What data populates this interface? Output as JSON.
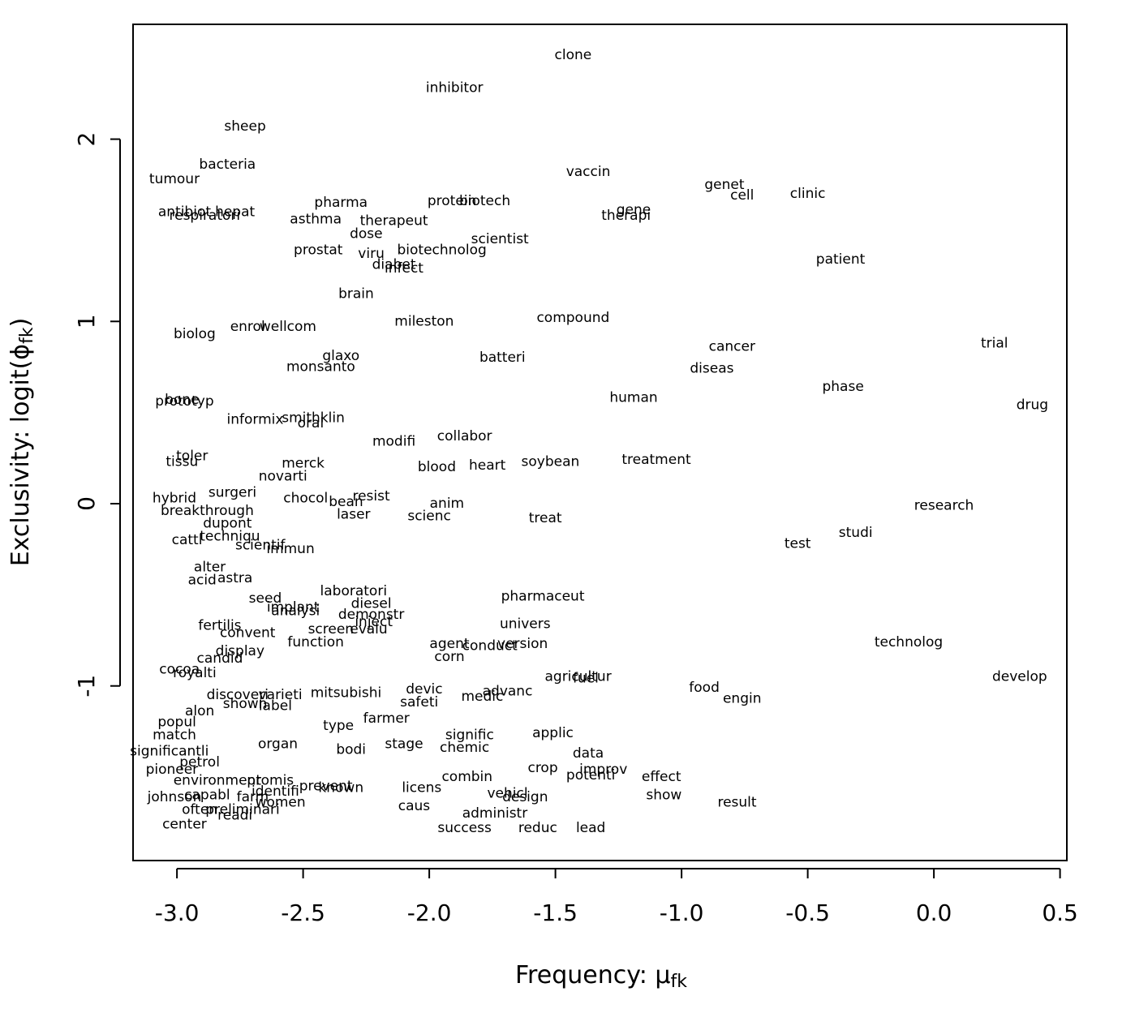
{
  "chart_data": {
    "type": "text-scatter",
    "xlabel": [
      "Frequency: μ",
      "fk"
    ],
    "ylabel": [
      "Exclusivity: logit(ϕ",
      "fk",
      ")"
    ],
    "xlim": [
      -3.174,
      0.527
    ],
    "ylim": [
      -1.958,
      2.63
    ],
    "xticks": [
      {
        "value": -3,
        "label": "-3.0"
      },
      -2.5,
      {
        "value": -2,
        "label": "-2.0"
      },
      -1.5,
      {
        "value": -1,
        "label": "-1.0"
      },
      -0.5,
      {
        "value": 0,
        "label": "0.0"
      },
      0.5
    ],
    "yticks": [
      -1,
      0,
      1,
      2
    ],
    "color": "#000000",
    "labels": [
      "clone",
      "inhibitor",
      "sheep",
      "bacteria",
      "tumour",
      "vaccin",
      "genet",
      "cell",
      "clinic",
      "pharma",
      "protein",
      "biotech",
      "antibiot",
      "hepat",
      "respiratori",
      "gene",
      "therapi",
      "asthma",
      "therapeut",
      "dose",
      "scientist",
      "biotechnolog",
      "prostat",
      "viru",
      "diabet",
      "infect",
      "patient",
      "brain",
      "mileston",
      "compound",
      "enrol",
      "wellcom",
      "biolog",
      "trial",
      "cancer",
      "glaxo",
      "batteri",
      "monsanto",
      "diseas",
      "phase",
      "human",
      "drug",
      "bone",
      "prototyp",
      "informix",
      "smithklin",
      "oral",
      "modifi",
      "collabor",
      "toler",
      "tissu",
      "merck",
      "blood",
      "heart",
      "soybean",
      "treatment",
      "novarti",
      "surgeri",
      "hybrid",
      "chocol",
      "bean",
      "resist",
      "anim",
      "breakthrough",
      "laser",
      "scienc",
      "treat",
      "research",
      "dupont",
      "studi",
      "cattl",
      "techniqu",
      "test",
      "scientif",
      "immun",
      "alter",
      "acid",
      "astra",
      "laboratori",
      "seed",
      "pharmaceut",
      "diesel",
      "implant",
      "analysi",
      "demonstr",
      "univers",
      "inject",
      "fertilis",
      "screen",
      "evalu",
      "convent",
      "function",
      "technolog",
      "agent",
      "conduct",
      "version",
      "display",
      "candid",
      "corn",
      "cocoa",
      "royalti",
      "agricultur",
      "fuel",
      "develop",
      "food",
      "devic",
      "advanc",
      "discoveri",
      "varieti",
      "mitsubishi",
      "medic",
      "engin",
      "safeti",
      "shown",
      "label",
      "alon",
      "farmer",
      "popul",
      "type",
      "applic",
      "match",
      "signific",
      "organ",
      "stage",
      "chemic",
      "bodi",
      "significantli",
      "data",
      "petrol",
      "crop",
      "pioneer",
      "improv",
      "potenti",
      "effect",
      "combin",
      "environment",
      "promis",
      "prevent",
      "identifi",
      "licens",
      "known",
      "vehicl",
      "show",
      "capabl",
      "farm",
      "design",
      "johnson",
      "women",
      "result",
      "caus",
      "often",
      "preliminari",
      "administr",
      "readi",
      "center",
      "lead",
      "reduc",
      "success"
    ],
    "x": [
      -1.43,
      -1.9,
      -2.73,
      -2.8,
      -3.01,
      -1.37,
      -0.83,
      -0.76,
      -0.5,
      -2.35,
      -1.91,
      -1.78,
      -2.97,
      -2.77,
      -2.89,
      -1.19,
      -1.22,
      -2.45,
      -2.14,
      -2.25,
      -1.72,
      -1.95,
      -2.44,
      -2.23,
      -2.14,
      -2.1,
      -0.37,
      -2.29,
      -2.02,
      -1.43,
      -2.72,
      -2.56,
      -2.93,
      0.24,
      -0.8,
      -2.35,
      -1.71,
      -2.43,
      -0.88,
      -0.36,
      -1.19,
      0.39,
      -2.98,
      -2.97,
      -2.69,
      -2.46,
      -2.47,
      -2.14,
      -1.86,
      -2.94,
      -2.98,
      -2.5,
      -1.97,
      -1.77,
      -1.52,
      -1.1,
      -2.58,
      -2.78,
      -3.01,
      -2.49,
      -2.33,
      -2.23,
      -1.93,
      -2.88,
      -2.3,
      -2.0,
      -1.54,
      0.04,
      -2.8,
      -0.31,
      -2.96,
      -2.79,
      -0.54,
      -2.67,
      -2.55,
      -2.87,
      -2.9,
      -2.77,
      -2.3,
      -2.65,
      -1.55,
      -2.23,
      -2.54,
      -2.53,
      -2.23,
      -1.62,
      -2.22,
      -2.83,
      -2.39,
      -2.24,
      -2.72,
      -2.45,
      -0.1,
      -1.92,
      -1.76,
      -1.63,
      -2.75,
      -2.83,
      -1.92,
      -2.99,
      -2.93,
      -1.41,
      -1.38,
      0.34,
      -0.91,
      -2.02,
      -1.69,
      -2.76,
      -2.59,
      -2.33,
      -1.79,
      -0.76,
      -2.04,
      -2.73,
      -2.61,
      -2.91,
      -2.17,
      -3.0,
      -2.36,
      -1.51,
      -3.01,
      -1.84,
      -2.6,
      -2.1,
      -1.86,
      -2.31,
      -3.03,
      -1.37,
      -2.91,
      -1.55,
      -3.02,
      -1.31,
      -1.36,
      -1.08,
      -1.85,
      -2.84,
      -2.63,
      -2.41,
      -2.61,
      -2.03,
      -2.35,
      -1.69,
      -1.07,
      -2.88,
      -2.7,
      -1.62,
      -3.01,
      -2.59,
      -0.78,
      -2.06,
      -2.91,
      -2.74,
      -1.74,
      -2.77,
      -2.97,
      -1.36,
      -1.57,
      -1.86
    ],
    "y": [
      2.46,
      2.28,
      2.07,
      1.86,
      1.78,
      1.82,
      1.75,
      1.69,
      1.7,
      1.65,
      1.66,
      1.66,
      1.6,
      1.6,
      1.58,
      1.61,
      1.58,
      1.56,
      1.55,
      1.48,
      1.45,
      1.39,
      1.39,
      1.37,
      1.31,
      1.29,
      1.34,
      1.15,
      1.0,
      1.02,
      0.97,
      0.97,
      0.93,
      0.88,
      0.86,
      0.81,
      0.8,
      0.75,
      0.74,
      0.64,
      0.58,
      0.54,
      0.57,
      0.56,
      0.46,
      0.47,
      0.44,
      0.34,
      0.37,
      0.26,
      0.23,
      0.22,
      0.2,
      0.21,
      0.23,
      0.24,
      0.15,
      0.06,
      0.03,
      0.03,
      0.01,
      0.04,
      0.0,
      -0.04,
      -0.06,
      -0.07,
      -0.08,
      -0.01,
      -0.11,
      -0.16,
      -0.2,
      -0.18,
      -0.22,
      -0.23,
      -0.25,
      -0.35,
      -0.42,
      -0.41,
      -0.48,
      -0.52,
      -0.51,
      -0.55,
      -0.57,
      -0.59,
      -0.61,
      -0.66,
      -0.65,
      -0.67,
      -0.69,
      -0.69,
      -0.71,
      -0.76,
      -0.76,
      -0.77,
      -0.78,
      -0.77,
      -0.81,
      -0.85,
      -0.84,
      -0.91,
      -0.93,
      -0.95,
      -0.96,
      -0.95,
      -1.01,
      -1.02,
      -1.03,
      -1.05,
      -1.05,
      -1.04,
      -1.06,
      -1.07,
      -1.09,
      -1.1,
      -1.11,
      -1.14,
      -1.18,
      -1.2,
      -1.22,
      -1.26,
      -1.27,
      -1.27,
      -1.32,
      -1.32,
      -1.34,
      -1.35,
      -1.36,
      -1.37,
      -1.42,
      -1.45,
      -1.46,
      -1.46,
      -1.49,
      -1.5,
      -1.5,
      -1.52,
      -1.52,
      -1.55,
      -1.58,
      -1.56,
      -1.56,
      -1.59,
      -1.6,
      -1.6,
      -1.61,
      -1.61,
      -1.61,
      -1.64,
      -1.64,
      -1.66,
      -1.68,
      -1.68,
      -1.7,
      -1.71,
      -1.76,
      -1.78,
      -1.78,
      -1.78
    ]
  }
}
